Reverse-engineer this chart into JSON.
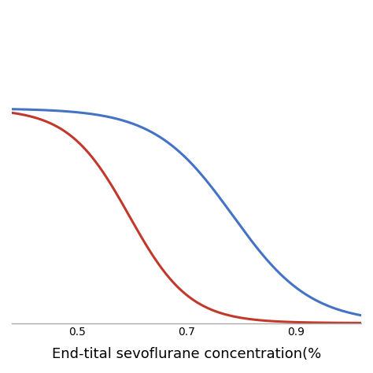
{
  "title": "",
  "xlabel": "End-tital sevoflurane concentration(%",
  "ylabel": "",
  "xlim": [
    0.38,
    1.02
  ],
  "ylim": [
    -0.02,
    1.45
  ],
  "xticks": [
    0.5,
    0.7,
    0.9
  ],
  "red_curve": {
    "midpoint": 0.595,
    "steepness": 18,
    "color": "#c0392b"
  },
  "blue_curve": {
    "midpoint": 0.785,
    "steepness": 14,
    "color": "#4472c4"
  },
  "line_width": 2.2,
  "background_color": "#ffffff",
  "xlabel_fontsize": 13,
  "tick_fontsize": 13
}
